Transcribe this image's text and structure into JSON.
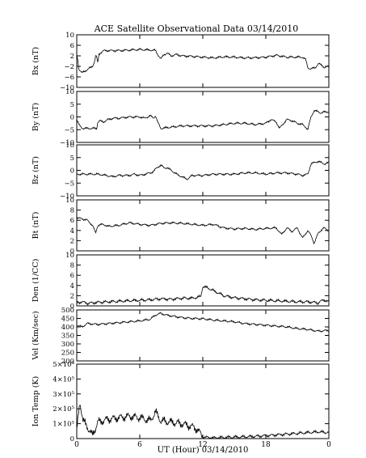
{
  "chart_data": {
    "type": "line",
    "title": "ACE Satellite Observational Data  03/14/2010",
    "xlabel": "UT (Hour)  03/14/2010",
    "x_ticks": [
      "0",
      "6",
      "12",
      "18",
      "0"
    ],
    "x_range_hours": [
      0,
      24
    ],
    "panels": [
      {
        "ylabel": "Bx (nT)",
        "ylim": [
          -10,
          10
        ],
        "y_ticks": [
          -10,
          -6,
          -2,
          2,
          6,
          10
        ],
        "y_tick_labels": [
          "−10",
          "−6",
          "−2",
          "2",
          "6",
          "10"
        ],
        "x": [
          0,
          0.1,
          0.2,
          0.3,
          0.4,
          0.5,
          0.7,
          0.9,
          1.1,
          1.3,
          1.5,
          1.7,
          1.8,
          1.9,
          2.0,
          2.1,
          2.2,
          2.4,
          2.6,
          3,
          4,
          5,
          6,
          7,
          7.5,
          7.8,
          8.0,
          8.3,
          8.6,
          9.0,
          9.5,
          10,
          11,
          12,
          13,
          14,
          15,
          16,
          17,
          18,
          19,
          20,
          21,
          21.5,
          21.8,
          22,
          22.3,
          22.7,
          23,
          23.3,
          23.6,
          24
        ],
        "y": [
          2.5,
          0.5,
          -3,
          -3.5,
          -4,
          -4.5,
          -4,
          -3.5,
          -3,
          -2.5,
          -2,
          0,
          2,
          1.5,
          -1,
          2.5,
          3,
          3.5,
          4,
          4,
          4,
          4.2,
          4.4,
          4.2,
          4,
          2,
          0.8,
          2.5,
          3,
          2,
          2.5,
          2,
          1.8,
          1.5,
          1.2,
          1.6,
          1.5,
          1.2,
          1.3,
          1.5,
          2.2,
          1.5,
          1.5,
          1.5,
          0.5,
          -2.5,
          -3,
          -2.5,
          -1,
          -1.5,
          -2.5,
          -2
        ]
      },
      {
        "ylabel": "By (nT)",
        "ylim": [
          -10,
          10
        ],
        "y_ticks": [
          -10,
          -5,
          0,
          5,
          10
        ],
        "y_tick_labels": [
          "−10",
          "−5",
          "0",
          "5",
          "10"
        ],
        "x": [
          0,
          0.2,
          0.4,
          0.6,
          0.8,
          1.0,
          1.3,
          1.6,
          1.9,
          2.0,
          2.2,
          2.5,
          3,
          3.5,
          4,
          5,
          6,
          6.5,
          7,
          7.3,
          7.5,
          7.7,
          8,
          9,
          10,
          11,
          12,
          13,
          14,
          15,
          16,
          17,
          18,
          18.5,
          19,
          19.3,
          19.6,
          20,
          20.5,
          21,
          21.5,
          21.8,
          22,
          22.3,
          22.6,
          23,
          23.3,
          23.6,
          24
        ],
        "y": [
          -1,
          -3,
          -4,
          -4.5,
          -4.5,
          -4.5,
          -4.5,
          -4.5,
          -4.5,
          -2,
          -1.5,
          -2,
          -1,
          -0.5,
          -0.5,
          0,
          0,
          -0.5,
          0.5,
          -0.5,
          0.5,
          -2,
          -4.5,
          -4,
          -3.5,
          -3.5,
          -3.5,
          -3.5,
          -3,
          -2.5,
          -2.5,
          -3,
          -2.5,
          -1,
          -2,
          -4.5,
          -3,
          -1,
          -1.5,
          -2.5,
          -3,
          -4,
          -5,
          0,
          2.5,
          2,
          1.5,
          2,
          2
        ]
      },
      {
        "ylabel": "Bz (nT)",
        "ylim": [
          -10,
          10
        ],
        "y_ticks": [
          -10,
          -5,
          0,
          5,
          10
        ],
        "y_tick_labels": [
          "−10",
          "−5",
          "0",
          "5",
          "10"
        ],
        "x": [
          0,
          1,
          2,
          2.8,
          3.4,
          4,
          5,
          5.5,
          6,
          6.5,
          7,
          7.3,
          7.6,
          8,
          8.3,
          8.6,
          9,
          9.5,
          10,
          10.5,
          11,
          12,
          13,
          14,
          15,
          16,
          17,
          18,
          19,
          20,
          21,
          21.5,
          22,
          22.3,
          22.6,
          23,
          23.3,
          23.6,
          24
        ],
        "y": [
          -1.5,
          -1.5,
          -1.5,
          -2,
          -2.5,
          -2,
          -2,
          -1.5,
          -2,
          -1.5,
          -1,
          -0.5,
          1,
          2,
          1,
          1,
          0,
          -1.5,
          -2.5,
          -3.5,
          -2,
          -2,
          -1.5,
          -1.5,
          -1.5,
          -1,
          -1,
          -1.5,
          -1,
          -1,
          -1.5,
          -2,
          -1.5,
          2.5,
          3,
          3.5,
          3,
          2.5,
          3
        ]
      },
      {
        "ylabel": "Bt (nT)",
        "ylim": [
          0,
          10
        ],
        "y_ticks": [
          0,
          2,
          4,
          6,
          8,
          10
        ],
        "y_tick_labels": [
          "0",
          "2",
          "4",
          "6",
          "8",
          "10"
        ],
        "x": [
          0,
          0.5,
          1,
          1.5,
          1.8,
          2,
          2.5,
          3,
          4,
          5,
          6,
          7,
          8,
          9,
          10,
          11,
          12,
          13,
          14,
          15,
          16,
          17,
          18,
          19,
          19.5,
          20,
          20.5,
          21,
          21.5,
          22,
          22.3,
          22.6,
          23,
          23.5,
          24
        ],
        "y": [
          6.5,
          6.3,
          6,
          5,
          3.5,
          5,
          5.2,
          4.8,
          5,
          5.5,
          5.2,
          5,
          5.4,
          5.5,
          5.4,
          5.2,
          5,
          5.2,
          4.5,
          4.3,
          4.4,
          4.2,
          4.4,
          4.5,
          3.2,
          4.5,
          3.8,
          4.5,
          2.5,
          4,
          3,
          1.5,
          3.5,
          4.5,
          4
        ]
      },
      {
        "ylabel": "Den (1/CC)",
        "ylim": [
          0,
          10
        ],
        "y_ticks": [
          0,
          2,
          4,
          6,
          8,
          10
        ],
        "y_tick_labels": [
          "0",
          "2",
          "4",
          "6",
          "8",
          "10"
        ],
        "x": [
          0,
          0.5,
          1,
          1.5,
          2,
          3,
          4,
          5,
          6,
          7,
          8,
          9,
          10,
          11,
          11.8,
          12,
          12.5,
          13,
          13.5,
          14,
          15,
          16,
          17,
          18,
          19,
          20,
          21,
          22,
          23,
          23.5,
          24
        ],
        "y": [
          0.6,
          0.8,
          0.5,
          0.6,
          0.7,
          0.8,
          0.9,
          1,
          1.1,
          1.2,
          1.4,
          1.3,
          1.5,
          1.5,
          1.8,
          3.8,
          3.5,
          3,
          2.5,
          2,
          1.6,
          1.4,
          1.2,
          1.1,
          1,
          0.9,
          0.8,
          0.8,
          0.6,
          1.2,
          0.8
        ]
      },
      {
        "ylabel": "Vel (Km/sec)",
        "ylim": [
          200,
          500
        ],
        "y_ticks": [
          200,
          250,
          300,
          350,
          400,
          450,
          500
        ],
        "y_tick_labels": [
          "200",
          "250",
          "300",
          "350",
          "400",
          "450",
          "500"
        ],
        "x": [
          0,
          0.5,
          1,
          2,
          3,
          4,
          5,
          6,
          7,
          7.5,
          8,
          8.5,
          9,
          10,
          11,
          12,
          13,
          14,
          15,
          16,
          17,
          18,
          19,
          20,
          21,
          22,
          23,
          24
        ],
        "y": [
          410,
          400,
          420,
          415,
          420,
          425,
          430,
          435,
          445,
          470,
          480,
          470,
          465,
          455,
          450,
          448,
          440,
          435,
          430,
          420,
          415,
          410,
          405,
          400,
          390,
          385,
          375,
          380
        ]
      },
      {
        "ylabel": "Ion Temp (K)",
        "ylim": [
          0,
          500000
        ],
        "y_ticks": [
          0,
          100000,
          200000,
          300000,
          400000,
          500000
        ],
        "y_tick_labels": [
          "0",
          "1×10⁵",
          "2×10⁵",
          "3×10⁵",
          "4×10⁵",
          "5×10⁵"
        ],
        "x": [
          0,
          0.3,
          0.6,
          1,
          1.5,
          2,
          3,
          4,
          5,
          6,
          7,
          7.5,
          8,
          9,
          10,
          11,
          11.5,
          12,
          13,
          14,
          15,
          16,
          17,
          18,
          19,
          20,
          21,
          22,
          23,
          24
        ],
        "y": [
          50000,
          250000,
          120000,
          80000,
          20000,
          110000,
          130000,
          140000,
          150000,
          140000,
          120000,
          180000,
          120000,
          110000,
          100000,
          80000,
          60000,
          10000,
          5000,
          8000,
          10000,
          12000,
          15000,
          20000,
          25000,
          30000,
          35000,
          40000,
          45000,
          40000
        ]
      }
    ]
  }
}
